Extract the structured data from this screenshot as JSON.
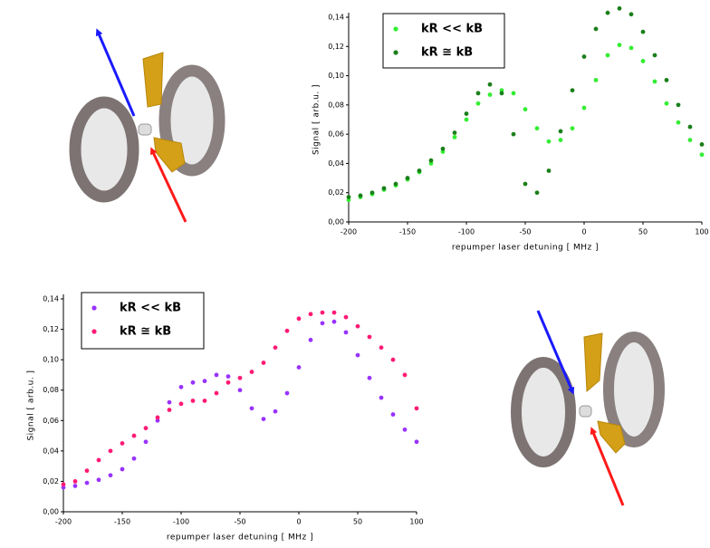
{
  "chart_data": [
    {
      "type": "line",
      "x": [
        -200,
        -190,
        -180,
        -170,
        -160,
        -150,
        -140,
        -130,
        -120,
        -110,
        -100,
        -90,
        -80,
        -70,
        -60,
        -50,
        -40,
        -30,
        -20,
        -10,
        0,
        10,
        20,
        30,
        40,
        50,
        60,
        70,
        80,
        90,
        100
      ],
      "series": [
        {
          "name": "kR << kB",
          "color": "#33ee33",
          "values": [
            0.015,
            0.017,
            0.019,
            0.022,
            0.025,
            0.029,
            0.034,
            0.04,
            0.048,
            0.058,
            0.07,
            0.081,
            0.087,
            0.09,
            0.088,
            0.077,
            0.064,
            0.055,
            0.056,
            0.064,
            0.078,
            0.097,
            0.114,
            0.121,
            0.119,
            0.11,
            0.096,
            0.081,
            0.068,
            0.056,
            0.046
          ]
        },
        {
          "name": "kR ≅ kB",
          "color": "#1b7f1b",
          "values": [
            0.017,
            0.018,
            0.02,
            0.023,
            0.026,
            0.03,
            0.035,
            0.042,
            0.05,
            0.061,
            0.074,
            0.088,
            0.094,
            0.088,
            0.06,
            0.026,
            0.02,
            0.035,
            0.062,
            0.09,
            0.113,
            0.132,
            0.143,
            0.146,
            0.142,
            0.13,
            0.114,
            0.097,
            0.08,
            0.065,
            0.053
          ]
        }
      ],
      "x_label": "repumper  laser detuning  [ MHz ]",
      "y_label": "Signal  [ arb.u. ]",
      "xlim": [
        -200,
        100
      ],
      "xticks": [
        -200,
        -150,
        -100,
        -50,
        0,
        50,
        100
      ],
      "ylim": [
        0,
        0.14
      ],
      "yticks": [
        {
          "value": 0,
          "label": "0,00"
        },
        {
          "value": 0.02,
          "label": "0,02"
        },
        {
          "value": 0.04,
          "label": "0,04"
        },
        {
          "value": 0.06,
          "label": "0,06"
        },
        {
          "value": 0.08,
          "label": "0,08"
        },
        {
          "value": 0.1,
          "label": "0,10"
        },
        {
          "value": 0.12,
          "label": "0,12"
        },
        {
          "value": 0.14,
          "label": "0,14"
        }
      ]
    },
    {
      "type": "line",
      "x": [
        -200,
        -190,
        -180,
        -170,
        -160,
        -150,
        -140,
        -130,
        -120,
        -110,
        -100,
        -90,
        -80,
        -70,
        -60,
        -50,
        -40,
        -30,
        -20,
        -10,
        0,
        10,
        20,
        30,
        40,
        50,
        60,
        70,
        80,
        90,
        100
      ],
      "series": [
        {
          "name": "kR << kB",
          "color": "#9933ff",
          "values": [
            0.016,
            0.017,
            0.019,
            0.021,
            0.024,
            0.028,
            0.035,
            0.046,
            0.06,
            0.072,
            0.082,
            0.085,
            0.086,
            0.09,
            0.089,
            0.08,
            0.068,
            0.061,
            0.066,
            0.078,
            0.095,
            0.113,
            0.124,
            0.125,
            0.118,
            0.103,
            0.088,
            0.075,
            0.064,
            0.054,
            0.046
          ]
        },
        {
          "name": "kR ≅ kB",
          "color": "#ff1a75",
          "values": [
            0.018,
            0.02,
            0.027,
            0.034,
            0.04,
            0.045,
            0.05,
            0.055,
            0.062,
            0.067,
            0.071,
            0.073,
            0.073,
            0.078,
            0.085,
            0.088,
            0.092,
            0.098,
            0.108,
            0.119,
            0.127,
            0.13,
            0.131,
            0.131,
            0.128,
            0.122,
            0.115,
            0.108,
            0.1,
            0.09,
            0.068
          ]
        }
      ],
      "x_label": "repumper  laser detuning  [ MHz ]",
      "y_label": "Signal  [ arb.u. ]",
      "xlim": [
        -200,
        100
      ],
      "xticks": [
        -200,
        -150,
        -100,
        -50,
        0,
        50,
        100
      ],
      "ylim": [
        0,
        0.14
      ],
      "yticks": [
        {
          "value": 0,
          "label": "0,00"
        },
        {
          "value": 0.02,
          "label": "0,02"
        },
        {
          "value": 0.04,
          "label": "0,04"
        },
        {
          "value": 0.06,
          "label": "0,06"
        },
        {
          "value": 0.08,
          "label": "0,08"
        },
        {
          "value": 0.1,
          "label": "0,10"
        },
        {
          "value": 0.12,
          "label": "0,12"
        },
        {
          "value": 0.14,
          "label": "0,14"
        }
      ]
    }
  ]
}
